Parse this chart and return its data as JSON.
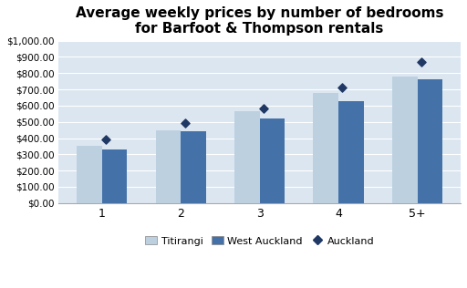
{
  "title": "Average weekly prices by number of bedrooms\nfor Barfoot & Thompson rentals",
  "categories": [
    "1",
    "2",
    "3",
    "4",
    "5+"
  ],
  "titirangi": [
    355,
    450,
    565,
    680,
    780
  ],
  "west_auckland": [
    330,
    440,
    520,
    630,
    760
  ],
  "auckland": [
    390,
    495,
    580,
    710,
    870
  ],
  "titirangi_color": "#BDD0E0",
  "west_auckland_color": "#4472A8",
  "auckland_color": "#1F3864",
  "background_color": "#DCE6F1",
  "ylim": [
    0,
    1000
  ],
  "yticks": [
    0,
    100,
    200,
    300,
    400,
    500,
    600,
    700,
    800,
    900,
    1000
  ],
  "title_fontsize": 11,
  "legend_labels": [
    "Titirangi",
    "West Auckland",
    "Auckland"
  ]
}
